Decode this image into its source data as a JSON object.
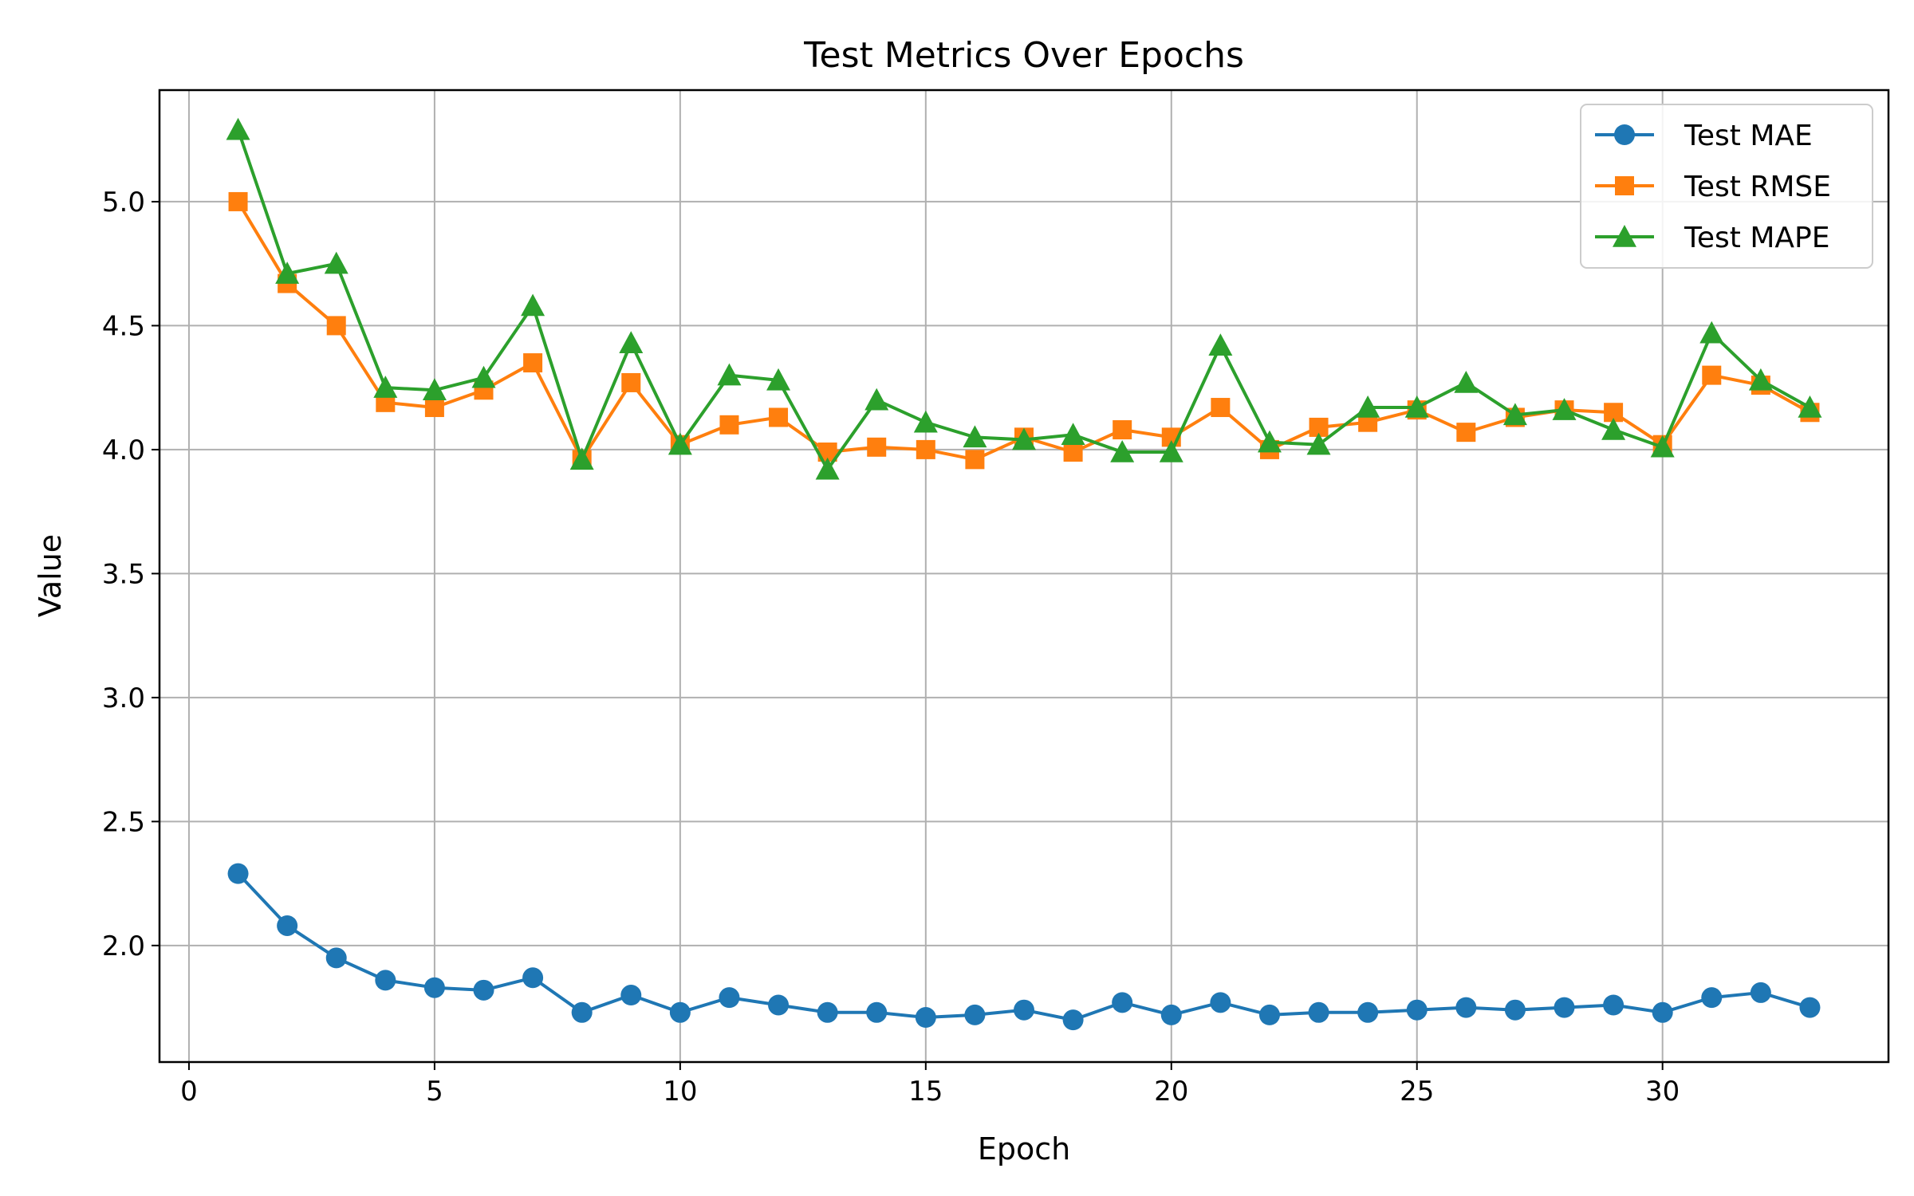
{
  "chart_data": {
    "type": "line",
    "title": "Test Metrics Over Epochs",
    "xlabel": "Epoch",
    "ylabel": "Value",
    "xlim": [
      -0.6,
      34.6
    ],
    "ylim": [
      1.53,
      5.45
    ],
    "xticks": [
      0,
      5,
      10,
      15,
      20,
      25,
      30
    ],
    "yticks": [
      2.0,
      2.5,
      3.0,
      3.5,
      4.0,
      4.5,
      5.0
    ],
    "xtick_labels": [
      "0",
      "5",
      "10",
      "15",
      "20",
      "25",
      "30"
    ],
    "ytick_labels": [
      "2.0",
      "2.5",
      "3.0",
      "3.5",
      "4.0",
      "4.5",
      "5.0"
    ],
    "grid": true,
    "legend_position": "top-right",
    "x": [
      1,
      2,
      3,
      4,
      5,
      6,
      7,
      8,
      9,
      10,
      11,
      12,
      13,
      14,
      15,
      16,
      17,
      18,
      19,
      20,
      21,
      22,
      23,
      24,
      25,
      26,
      27,
      28,
      29,
      30,
      31,
      32,
      33
    ],
    "series": [
      {
        "name": "Test MAE",
        "color": "#1f77b4",
        "marker": "circle",
        "values": [
          2.29,
          2.08,
          1.95,
          1.86,
          1.83,
          1.82,
          1.87,
          1.73,
          1.8,
          1.73,
          1.79,
          1.76,
          1.73,
          1.73,
          1.71,
          1.72,
          1.74,
          1.7,
          1.77,
          1.72,
          1.77,
          1.72,
          1.73,
          1.73,
          1.74,
          1.75,
          1.74,
          1.75,
          1.76,
          1.73,
          1.79,
          1.81,
          1.75
        ]
      },
      {
        "name": "Test RMSE",
        "color": "#ff7f0e",
        "marker": "square",
        "values": [
          5.0,
          4.67,
          4.5,
          4.19,
          4.17,
          4.24,
          4.35,
          3.96,
          4.27,
          4.02,
          4.1,
          4.13,
          3.99,
          4.01,
          4.0,
          3.96,
          4.05,
          3.99,
          4.08,
          4.05,
          4.17,
          4.0,
          4.09,
          4.11,
          4.16,
          4.07,
          4.13,
          4.16,
          4.15,
          4.02,
          4.3,
          4.26,
          4.15
        ]
      },
      {
        "name": "Test MAPE",
        "color": "#2ca02c",
        "marker": "triangle",
        "values": [
          5.29,
          4.71,
          4.75,
          4.25,
          4.24,
          4.29,
          4.58,
          3.96,
          4.43,
          4.02,
          4.3,
          4.28,
          3.92,
          4.2,
          4.11,
          4.05,
          4.04,
          4.06,
          3.99,
          3.99,
          4.42,
          4.03,
          4.02,
          4.17,
          4.17,
          4.27,
          4.14,
          4.16,
          4.08,
          4.01,
          4.47,
          4.28,
          4.17
        ]
      }
    ]
  }
}
